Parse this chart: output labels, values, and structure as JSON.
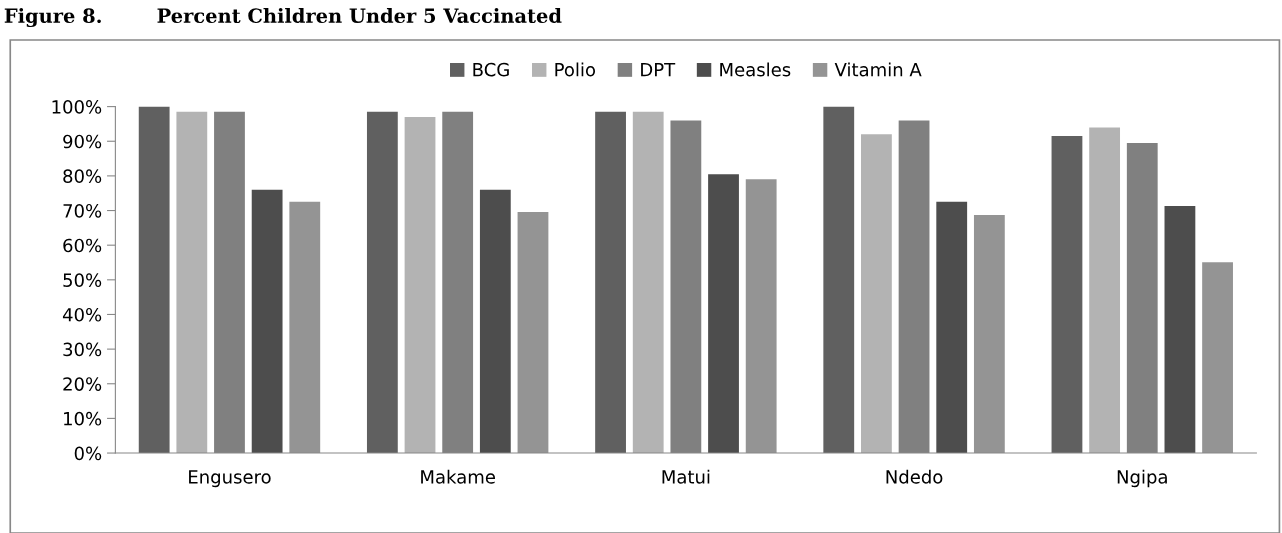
{
  "chart_data": {
    "type": "bar",
    "title": "Figure 8.        Percent Children Under 5 Vaccinated",
    "categories": [
      "Engusero",
      "Makame",
      "Matui",
      "Ndedo",
      "Ngipa"
    ],
    "series": [
      {
        "name": "BCG",
        "color": "#606060",
        "values": [
          100,
          98.5,
          98.5,
          100,
          91.5
        ]
      },
      {
        "name": "Polio",
        "color": "#b3b3b3",
        "values": [
          98.5,
          97,
          98.5,
          92,
          94
        ]
      },
      {
        "name": "DPT",
        "color": "#808080",
        "values": [
          98.5,
          98.5,
          96,
          96,
          89.5
        ]
      },
      {
        "name": "Measles",
        "color": "#4d4d4d",
        "values": [
          76,
          76,
          80.5,
          72.5,
          71.3
        ]
      },
      {
        "name": "Vitamin A",
        "color": "#949494",
        "values": [
          72.5,
          69.6,
          79,
          68.7,
          55.1
        ]
      }
    ],
    "ylim": [
      0,
      100
    ],
    "yticks": [
      {
        "value": 0,
        "label": "0%"
      },
      {
        "value": 10,
        "label": "10%"
      },
      {
        "value": 20,
        "label": "20%"
      },
      {
        "value": 30,
        "label": "30%"
      },
      {
        "value": 40,
        "label": "40%"
      },
      {
        "value": 50,
        "label": "50%"
      },
      {
        "value": 60,
        "label": "60%"
      },
      {
        "value": 70,
        "label": "70%"
      },
      {
        "value": 80,
        "label": "80%"
      },
      {
        "value": 90,
        "label": "90%"
      },
      {
        "value": 100,
        "label": "100%"
      }
    ],
    "grid": false,
    "legend": "top"
  }
}
